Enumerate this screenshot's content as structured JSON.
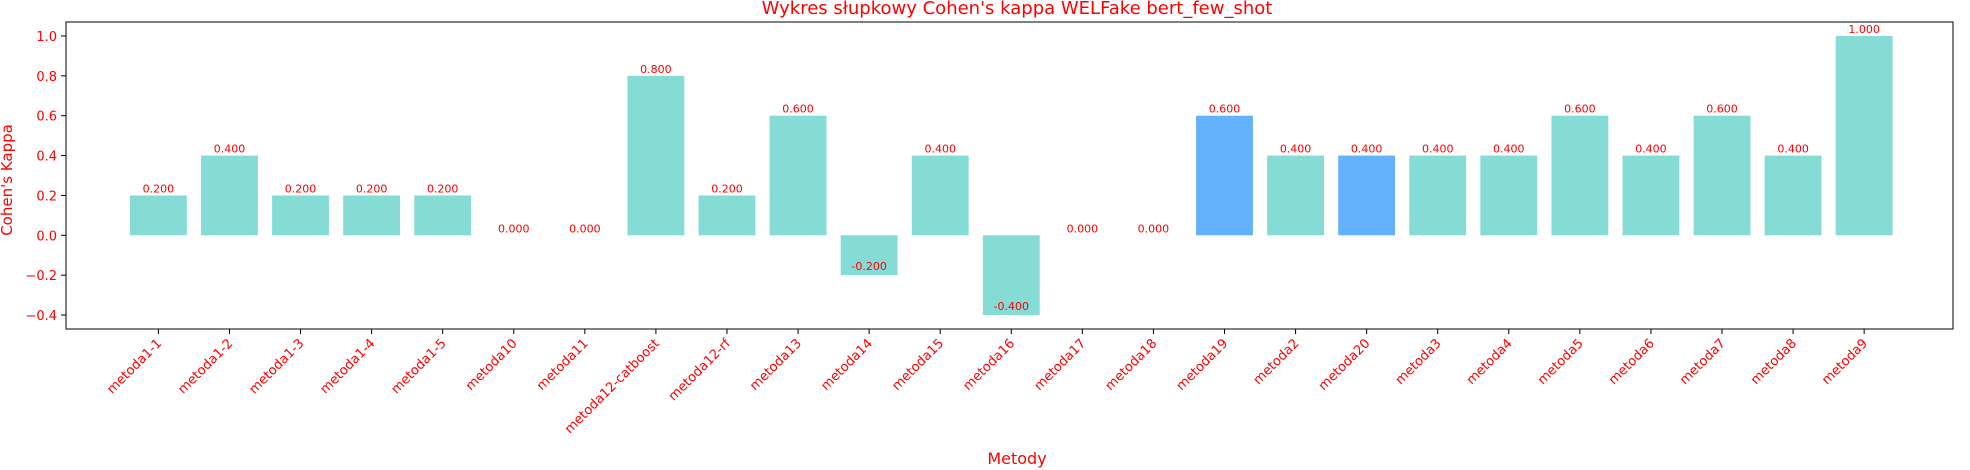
{
  "chart_data": {
    "type": "bar",
    "title": "Wykres słupkowy Cohen's kappa WELFake bert_few_shot",
    "xlabel": "Metody",
    "ylabel": "Cohen's Kappa",
    "categories": [
      "metoda1-1",
      "metoda1-2",
      "metoda1-3",
      "metoda1-4",
      "metoda1-5",
      "metoda10",
      "metoda11",
      "metoda12-catboost",
      "metoda12-rf",
      "metoda13",
      "metoda14",
      "metoda15",
      "metoda16",
      "metoda17",
      "metoda18",
      "metoda19",
      "metoda2",
      "metoda20",
      "metoda3",
      "metoda4",
      "metoda5",
      "metoda6",
      "metoda7",
      "metoda8",
      "metoda9"
    ],
    "values": [
      0.2,
      0.4,
      0.2,
      0.2,
      0.2,
      0.0,
      0.0,
      0.8,
      0.2,
      0.6,
      -0.2,
      0.4,
      -0.4,
      0.0,
      0.0,
      0.6,
      0.4,
      0.4,
      0.4,
      0.4,
      0.6,
      0.4,
      0.6,
      0.4,
      1.0
    ],
    "value_labels": [
      "0.200",
      "0.400",
      "0.200",
      "0.200",
      "0.200",
      "0.000",
      "0.000",
      "0.800",
      "0.200",
      "0.600",
      "-0.200",
      "0.400",
      "-0.400",
      "0.000",
      "0.000",
      "0.600",
      "0.400",
      "0.400",
      "0.400",
      "0.400",
      "0.600",
      "0.400",
      "0.600",
      "0.400",
      "1.000"
    ],
    "highlighted": [
      "metoda19",
      "metoda20"
    ],
    "ylim": [
      -0.47,
      1.07
    ],
    "yticks": [
      -0.4,
      -0.2,
      0.0,
      0.2,
      0.4,
      0.6,
      0.8,
      1.0
    ],
    "ytick_labels": [
      "−0.4",
      "−0.2",
      "0.0",
      "0.2",
      "0.4",
      "0.6",
      "0.8",
      "1.0"
    ],
    "grid": false,
    "colors": {
      "bar": "#84dcd5",
      "highlight": "#62b2fe",
      "text": "#ff0000",
      "axis": "#000000"
    }
  }
}
